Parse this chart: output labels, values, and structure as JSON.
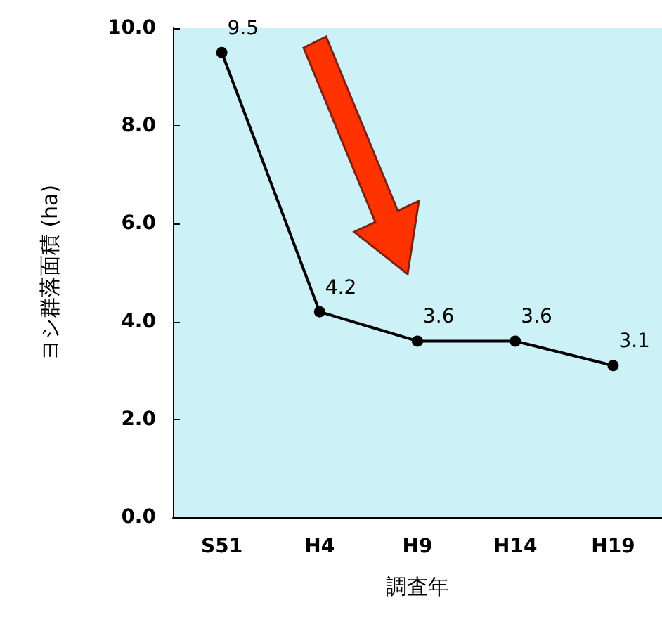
{
  "chart_data": {
    "type": "line",
    "xlabel": "調査年",
    "ylabel": "ヨシ群落面積 (ha)",
    "categories": [
      "S51",
      "H4",
      "H9",
      "H14",
      "H19"
    ],
    "series": [
      {
        "color": "#000000",
        "values": [
          9.5,
          4.2,
          3.6,
          3.6,
          3.1
        ]
      }
    ],
    "ylim": [
      0,
      10
    ],
    "yticks": [
      {
        "value": 0,
        "label": "0.0"
      },
      {
        "value": 2,
        "label": "2.0"
      },
      {
        "value": 4,
        "label": "4.0"
      },
      {
        "value": 6,
        "label": "6.0"
      },
      {
        "value": 8,
        "label": "8.0"
      },
      {
        "value": 10,
        "label": "10.0"
      }
    ],
    "data_labels": true,
    "grid": false,
    "marker": "circle",
    "line_style": "solid"
  }
}
